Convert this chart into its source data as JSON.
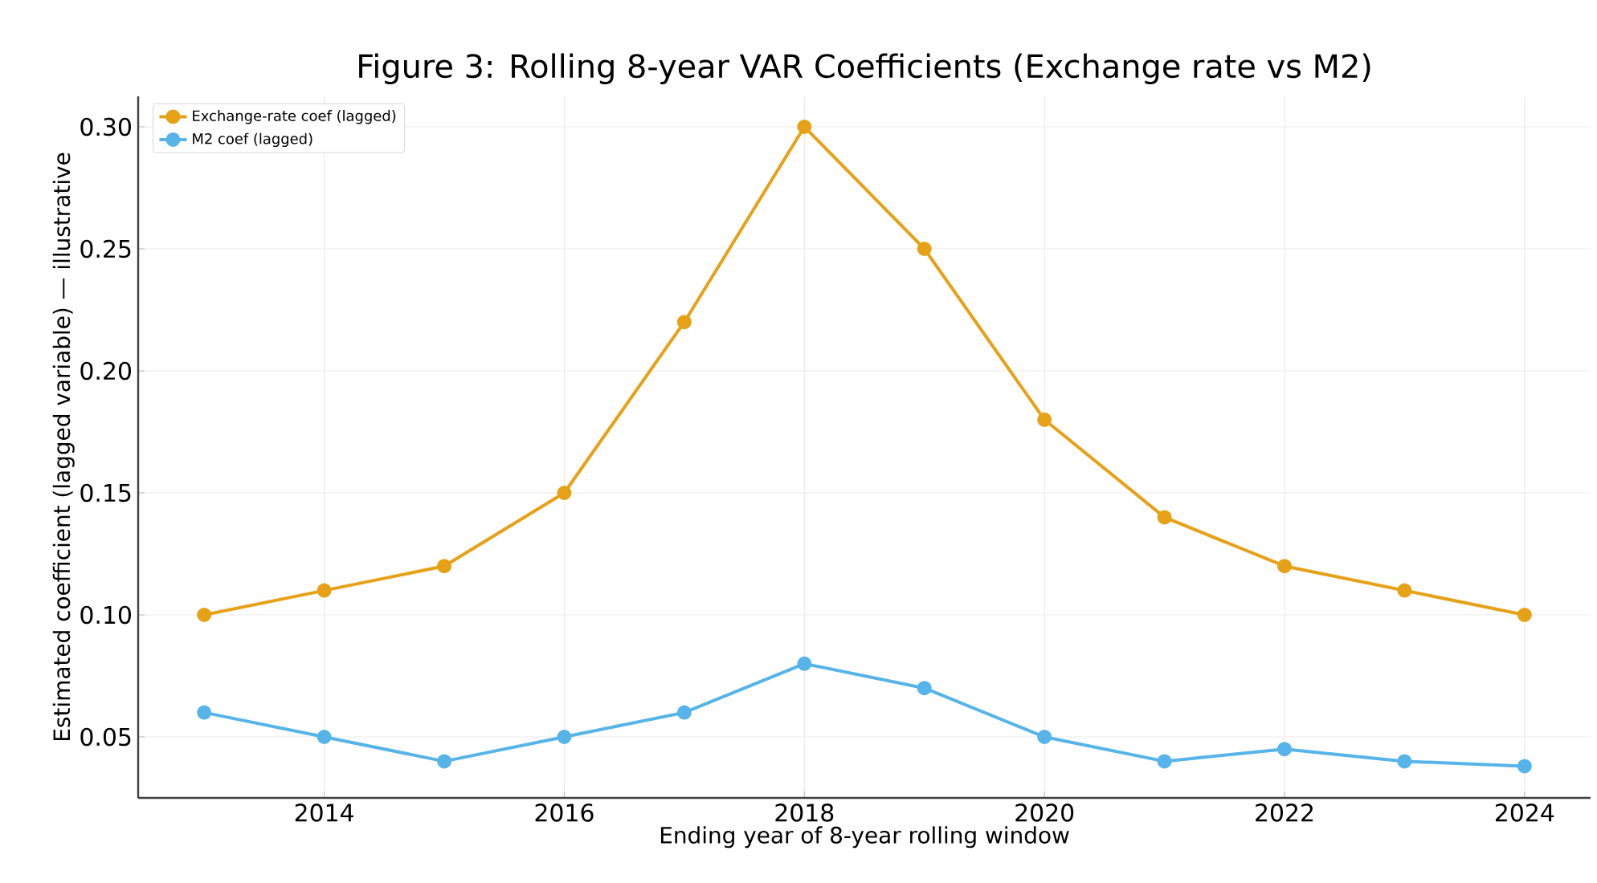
{
  "chart_data": {
    "type": "line",
    "title": "Figure 3: Rolling 8-year VAR Coefficients (Exchange rate vs M2)",
    "xlabel": "Ending year of 8-year rolling window",
    "ylabel": "Estimated coefficient (lagged variable) — illustrative",
    "x": [
      2013,
      2014,
      2015,
      2016,
      2017,
      2018,
      2019,
      2020,
      2021,
      2022,
      2023,
      2024
    ],
    "series": [
      {
        "name": "Exchange-rate coef (lagged)",
        "color": "#e6a117",
        "values": [
          0.1,
          0.11,
          0.12,
          0.15,
          0.22,
          0.3,
          0.25,
          0.18,
          0.14,
          0.12,
          0.11,
          0.1
        ]
      },
      {
        "name": "M2 coef (lagged)",
        "color": "#56b4e9",
        "values": [
          0.06,
          0.05,
          0.04,
          0.05,
          0.06,
          0.08,
          0.07,
          0.05,
          0.04,
          0.045,
          0.04,
          0.038
        ]
      }
    ],
    "xlim": [
      2012.45,
      2024.55
    ],
    "ylim": [
      0.025,
      0.3125
    ],
    "xticks": [
      2014,
      2016,
      2018,
      2020,
      2022,
      2024
    ],
    "yticks": [
      {
        "value": 0.05,
        "label": "0.05"
      },
      {
        "value": 0.1,
        "label": "0.10"
      },
      {
        "value": 0.15,
        "label": "0.15"
      },
      {
        "value": 0.2,
        "label": "0.20"
      },
      {
        "value": 0.25,
        "label": "0.25"
      },
      {
        "value": 0.3,
        "label": "0.30"
      }
    ],
    "grid": true,
    "legend": "top left",
    "marker": "circle",
    "line_style": "solid"
  }
}
